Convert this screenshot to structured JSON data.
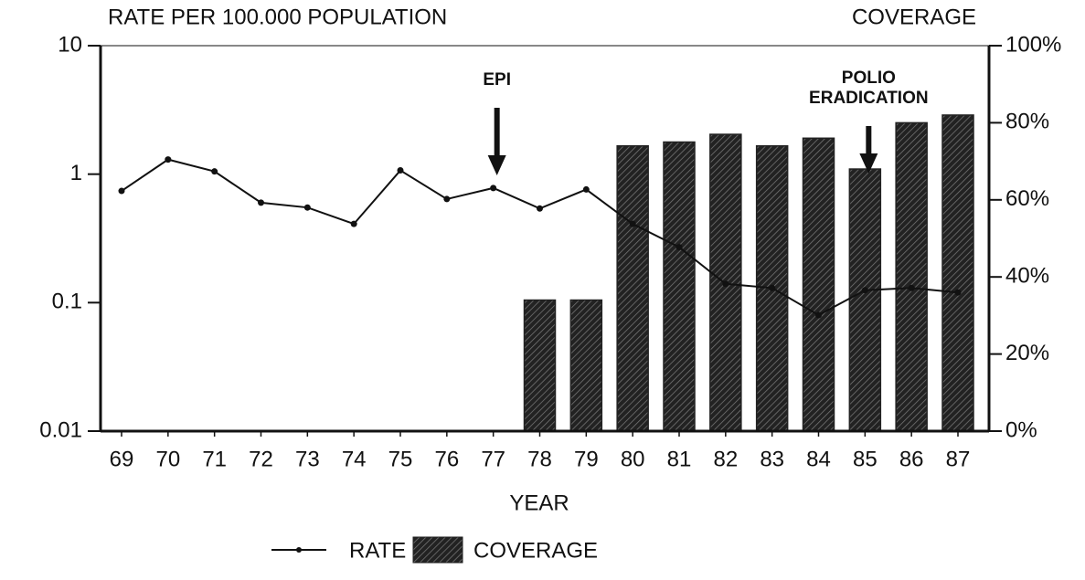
{
  "chart_data": {
    "type": "bar-line",
    "title": "RATE PER 100.000 POPULATION",
    "y2_label": "COVERAGE",
    "x_label": "YEAR",
    "categories": [
      "69",
      "70",
      "71",
      "72",
      "73",
      "74",
      "75",
      "76",
      "77",
      "78",
      "79",
      "80",
      "81",
      "82",
      "83",
      "84",
      "85",
      "86",
      "87"
    ],
    "series": [
      {
        "name": "RATE",
        "type": "line",
        "color": "#111111",
        "axis": "y",
        "values": [
          0.74,
          1.3,
          1.05,
          0.6,
          0.55,
          0.41,
          1.07,
          0.64,
          0.78,
          0.54,
          0.76,
          0.41,
          0.27,
          0.14,
          0.13,
          0.08,
          0.125,
          0.13,
          0.12
        ]
      },
      {
        "name": "COVERAGE",
        "type": "bar",
        "color": "#222222",
        "axis": "y2",
        "values": [
          null,
          null,
          null,
          null,
          null,
          null,
          null,
          null,
          null,
          34,
          34,
          74,
          75,
          77,
          74,
          76,
          68,
          80,
          82
        ]
      }
    ],
    "ylim": [
      0.01,
      10
    ],
    "yticks": [
      0.01,
      0.1,
      1,
      10
    ],
    "log_y": true,
    "y2lim": [
      0,
      100
    ],
    "y2ticks": [
      {
        "value": 0,
        "label": "0%"
      },
      {
        "value": 20,
        "label": "20%"
      },
      {
        "value": 40,
        "label": "40%"
      },
      {
        "value": 60,
        "label": "60%"
      },
      {
        "value": 80,
        "label": "80%"
      },
      {
        "value": 100,
        "label": "100%"
      }
    ],
    "annotations": [
      {
        "lines": [
          "EPI"
        ],
        "category": "77"
      },
      {
        "lines": [
          "POLIO",
          "ERADICATION"
        ],
        "category": "85"
      }
    ],
    "legend": "bottom"
  }
}
